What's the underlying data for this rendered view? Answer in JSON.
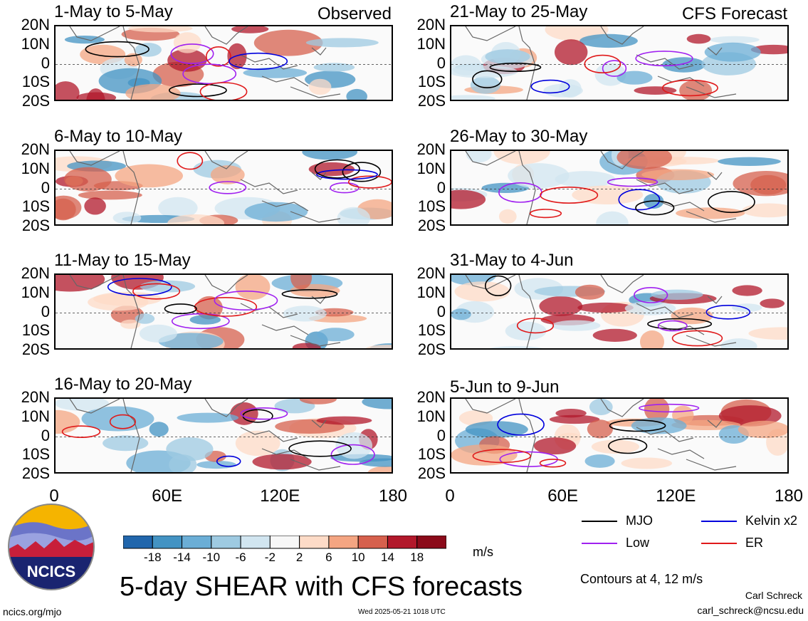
{
  "panels": [
    {
      "title": "1-May to 5-May",
      "tag": "Observed"
    },
    {
      "title": "21-May to 25-May",
      "tag": "CFS Forecast"
    },
    {
      "title": "6-May to 10-May",
      "tag": ""
    },
    {
      "title": "26-May to 30-May",
      "tag": ""
    },
    {
      "title": "11-May to 15-May",
      "tag": ""
    },
    {
      "title": "31-May to 4-Jun",
      "tag": ""
    },
    {
      "title": "16-May to 20-May",
      "tag": ""
    },
    {
      "title": "5-Jun to 9-Jun",
      "tag": ""
    }
  ],
  "lat_labels": [
    "20N",
    "10N",
    "0",
    "10S",
    "20S"
  ],
  "lon_labels": [
    "0",
    "60E",
    "120E",
    "180"
  ],
  "colorbar": {
    "ticks": [
      "-18",
      "-14",
      "-10",
      "-6",
      "-2",
      "2",
      "6",
      "10",
      "14",
      "18"
    ],
    "colors": [
      "#08306b",
      "#2166ac",
      "#4393c3",
      "#6baed6",
      "#9ecae1",
      "#d1e5f0",
      "#f7f7f7",
      "#fddbc7",
      "#f4a582",
      "#d6604d",
      "#b2182b",
      "#8b0a1a",
      "#67001f"
    ],
    "unit": "m/s"
  },
  "legend": [
    {
      "label": "MJO",
      "color": "#000000"
    },
    {
      "label": "Kelvin x2",
      "color": "#0000dd"
    },
    {
      "label": "Low",
      "color": "#a020f0"
    },
    {
      "label": "ER",
      "color": "#e0191a"
    }
  ],
  "contour_note": "Contours at 4, 12 m/s",
  "main_title": "5-day SHEAR with CFS forecasts",
  "logo_text": "NCICS",
  "website": "ncics.org/mjo",
  "timestamp": "Wed 2025-05-21 1018 UTC",
  "author": "Carl Schreck",
  "email": "carl_schreck@ncsu.edu"
}
